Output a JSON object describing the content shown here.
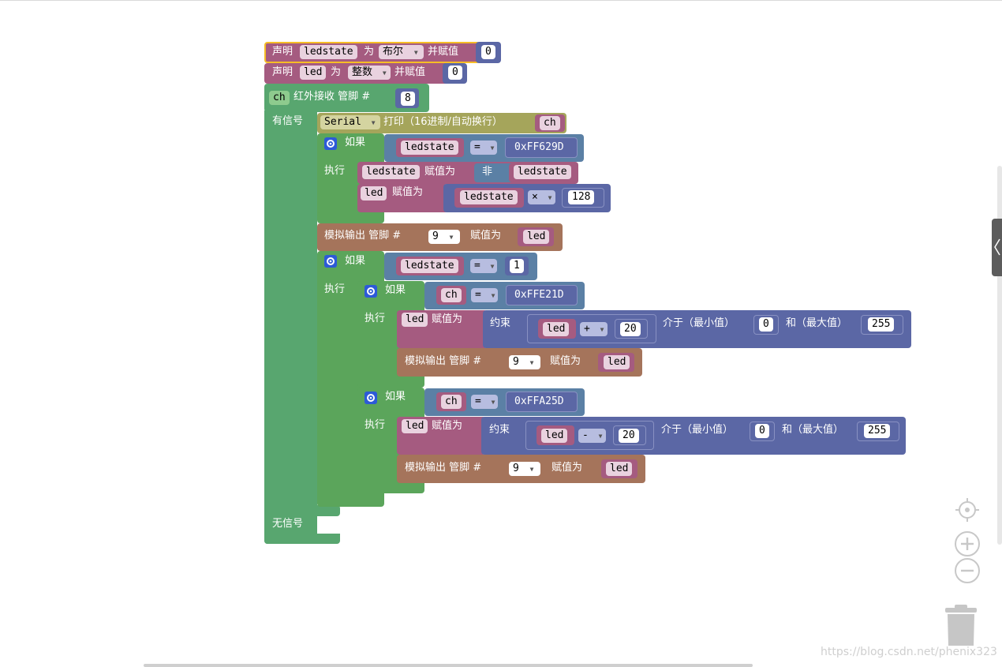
{
  "ws": {
    "kw_declare": "声明",
    "kw_as": "为",
    "kw_and_assign": "并赋值",
    "var_ledstate": "ledstate",
    "var_led": "led",
    "var_ch": "ch",
    "type_bool": "布尔",
    "type_int": "整数",
    "val_0": "0",
    "ir_label": "红外接收 管脚 #",
    "ir_pin": "8",
    "has_signal": "有信号",
    "no_signal": "无信号",
    "serial_label": "Serial",
    "serial_print": "打印（16进制/自动换行）",
    "if": "如果",
    "do": "执行",
    "eq": "=",
    "not": "非",
    "assign": "赋值为",
    "mul": "×",
    "plus": "+",
    "minus": "-",
    "num_128": "128",
    "hex_1": "0xFF629D",
    "hex_2": "0xFFE21D",
    "hex_3": "0xFFA25D",
    "analog_write": "模拟输出 管脚 #",
    "pin_9": "9",
    "num_1": "1",
    "constrain": "约束",
    "num_20": "20",
    "between_min": "介于（最小值）",
    "and_max": "和（最大值）",
    "num_255": "255"
  },
  "watermark": "https://blog.csdn.net/phenix323",
  "icons": [
    "settings-gear-icon",
    "dropdown-arrow-icon",
    "recenter-icon",
    "zoom-in-icon",
    "zoom-out-icon",
    "trash-icon",
    "sidebar-collapse-icon"
  ]
}
